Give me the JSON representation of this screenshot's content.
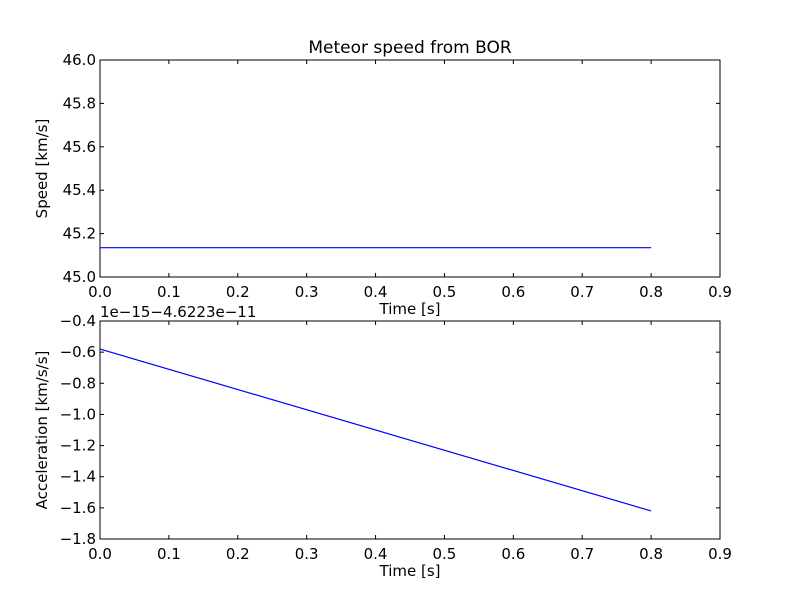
{
  "figure_title": "Meteor speed from  BOR",
  "chart_data": [
    {
      "type": "line",
      "title": "Meteor speed from  BOR",
      "xlabel": "Time [s]",
      "ylabel": "Speed [km/s]",
      "xlim": [
        0.0,
        0.9
      ],
      "ylim": [
        45.0,
        46.0
      ],
      "x_ticks": [
        "0.0",
        "0.1",
        "0.2",
        "0.3",
        "0.4",
        "0.5",
        "0.6",
        "0.7",
        "0.8",
        "0.9"
      ],
      "y_ticks": [
        "45.0",
        "45.2",
        "45.4",
        "45.6",
        "45.8",
        "46.0"
      ],
      "x_tick_values": [
        0.0,
        0.1,
        0.2,
        0.3,
        0.4,
        0.5,
        0.6,
        0.7,
        0.8,
        0.9
      ],
      "y_tick_values": [
        45.0,
        45.2,
        45.4,
        45.6,
        45.8,
        46.0
      ],
      "offset_text": "",
      "grid": false,
      "series": [
        {
          "color": "#0000ff",
          "x": [
            0.0,
            0.8
          ],
          "y": [
            45.135,
            45.135
          ]
        }
      ]
    },
    {
      "type": "line",
      "title": "",
      "xlabel": "Time [s]",
      "ylabel": "Acceleration [km/s/s]",
      "xlim": [
        0.0,
        0.9
      ],
      "ylim": [
        -1.8,
        -0.4
      ],
      "x_ticks": [
        "0.0",
        "0.1",
        "0.2",
        "0.3",
        "0.4",
        "0.5",
        "0.6",
        "0.7",
        "0.8",
        "0.9"
      ],
      "y_ticks": [
        "−1.8",
        "−1.6",
        "−1.4",
        "−1.2",
        "−1.0",
        "−0.8",
        "−0.6",
        "−0.4"
      ],
      "x_tick_values": [
        0.0,
        0.1,
        0.2,
        0.3,
        0.4,
        0.5,
        0.6,
        0.7,
        0.8,
        0.9
      ],
      "y_tick_values": [
        -1.8,
        -1.6,
        -1.4,
        -1.2,
        -1.0,
        -0.8,
        -0.6,
        -0.4
      ],
      "offset_text": "1e−15−4.6223e−11",
      "grid": false,
      "series": [
        {
          "color": "#0000ff",
          "x": [
            0.0,
            0.8
          ],
          "y": [
            -0.58,
            -1.62
          ]
        }
      ]
    }
  ]
}
